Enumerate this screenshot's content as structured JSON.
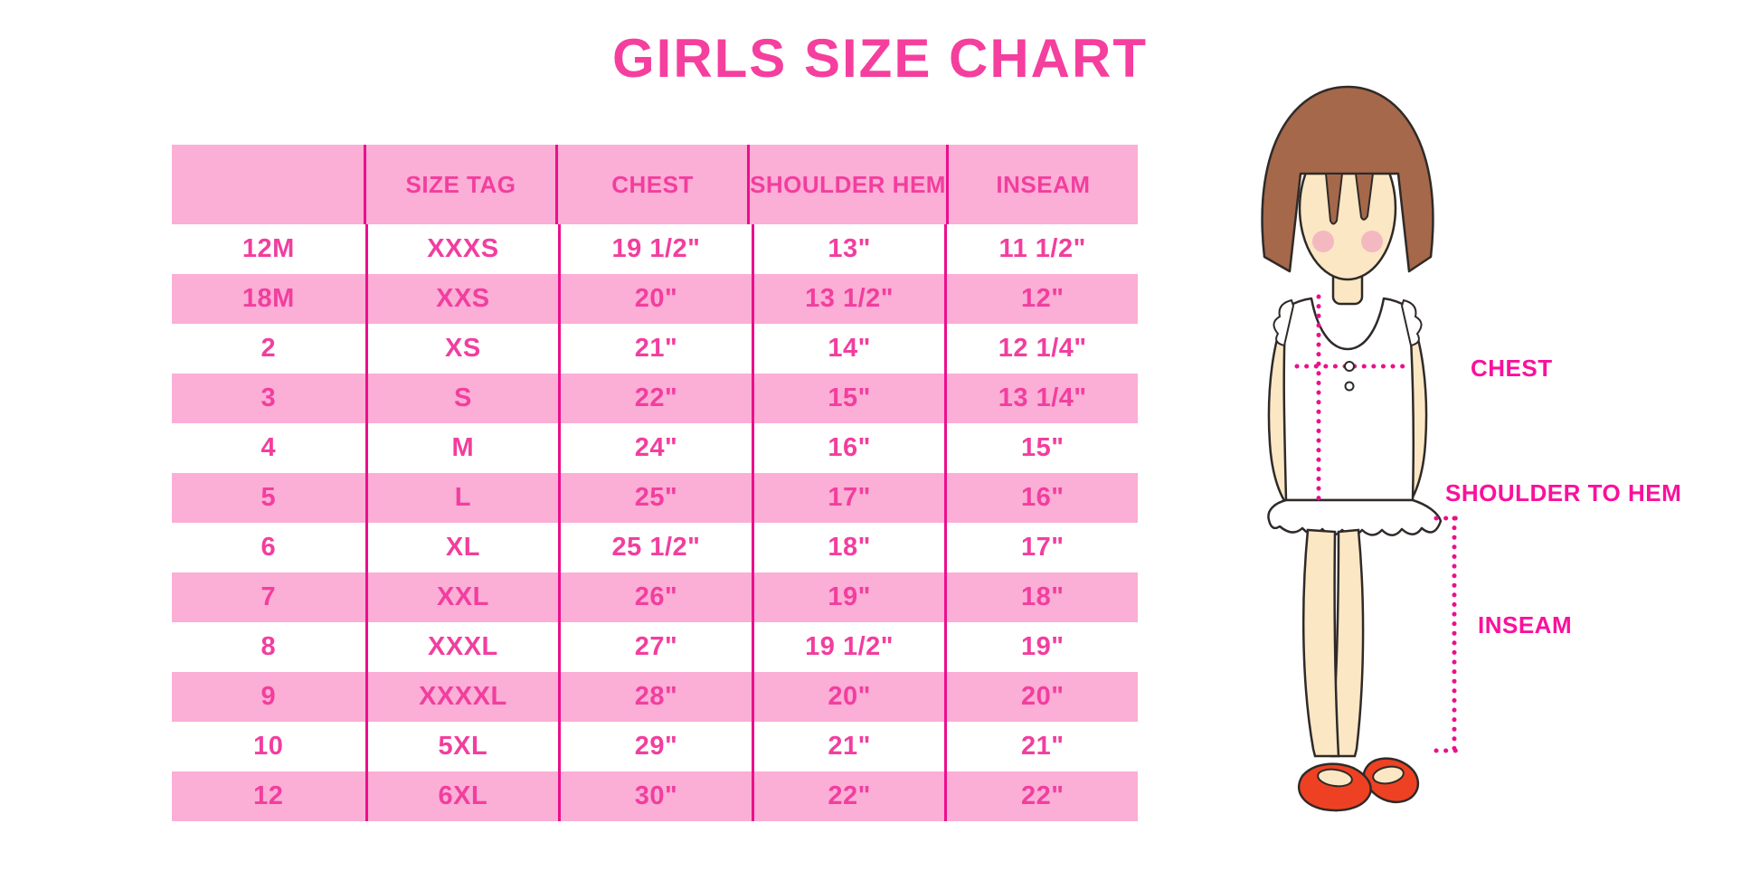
{
  "title": "GIRLS SIZE CHART",
  "colors": {
    "band_pink": "#FBAED6",
    "separator_magenta": "#EC0F8C",
    "cell_text_pink": "#F23E9E",
    "title_pink": "#F53F9E",
    "label_magenta": "#FA109C",
    "hair_brown": "#A5684A",
    "skin": "#FBE7C4",
    "blush": "#F2A8C0",
    "shoe_red": "#EE4123",
    "outline_dark": "#2F2A28"
  },
  "chart_data": {
    "type": "table",
    "title": "GIRLS SIZE CHART",
    "columns": [
      "",
      "SIZE TAG",
      "CHEST",
      "SHOULDER HEM",
      "INSEAM"
    ],
    "striped_rows": true,
    "rows": [
      {
        "size": "12M",
        "size_tag": "XXXS",
        "chest": "19 1/2\"",
        "shoulder_hem": "13\"",
        "inseam": "11 1/2\""
      },
      {
        "size": "18M",
        "size_tag": "XXS",
        "chest": "20\"",
        "shoulder_hem": "13 1/2\"",
        "inseam": "12\""
      },
      {
        "size": "2",
        "size_tag": "XS",
        "chest": "21\"",
        "shoulder_hem": "14\"",
        "inseam": "12 1/4\""
      },
      {
        "size": "3",
        "size_tag": "S",
        "chest": "22\"",
        "shoulder_hem": "15\"",
        "inseam": "13 1/4\""
      },
      {
        "size": "4",
        "size_tag": "M",
        "chest": "24\"",
        "shoulder_hem": "16\"",
        "inseam": "15\""
      },
      {
        "size": "5",
        "size_tag": "L",
        "chest": "25\"",
        "shoulder_hem": "17\"",
        "inseam": "16\""
      },
      {
        "size": "6",
        "size_tag": "XL",
        "chest": "25 1/2\"",
        "shoulder_hem": "18\"",
        "inseam": "17\""
      },
      {
        "size": "7",
        "size_tag": "XXL",
        "chest": "26\"",
        "shoulder_hem": "19\"",
        "inseam": "18\""
      },
      {
        "size": "8",
        "size_tag": "XXXL",
        "chest": "27\"",
        "shoulder_hem": "19 1/2\"",
        "inseam": "19\""
      },
      {
        "size": "9",
        "size_tag": "XXXXL",
        "chest": "28\"",
        "shoulder_hem": "20\"",
        "inseam": "20\""
      },
      {
        "size": "10",
        "size_tag": "5XL",
        "chest": "29\"",
        "shoulder_hem": "21\"",
        "inseam": "21\""
      },
      {
        "size": "12",
        "size_tag": "6XL",
        "chest": "30\"",
        "shoulder_hem": "22\"",
        "inseam": "22\""
      }
    ]
  },
  "figure": {
    "labels": {
      "chest": "CHEST",
      "shoulder_to_hem": "SHOULDER TO HEM",
      "inseam": "INSEAM"
    }
  }
}
